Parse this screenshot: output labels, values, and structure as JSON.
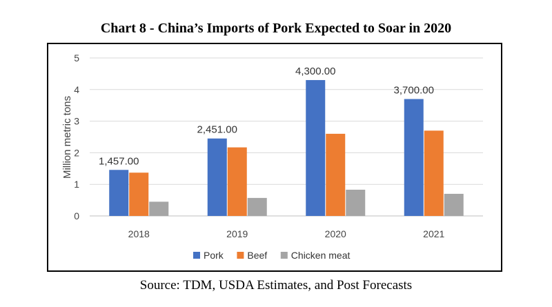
{
  "chart_data": {
    "type": "bar",
    "title": "Chart 8 - China’s Imports of Pork Expected to Soar in 2020",
    "source": "Source: TDM, USDA Estimates, and Post Forecasts",
    "ylabel": "Million metric tons",
    "xlabel": "",
    "ylim": [
      0,
      5
    ],
    "yticks": [
      0,
      1,
      2,
      3,
      4,
      5
    ],
    "grid": true,
    "legend_position": "bottom",
    "categories": [
      "2018",
      "2019",
      "2020",
      "2021"
    ],
    "series": [
      {
        "name": "Pork",
        "color": "#4472C4",
        "values": [
          1.457,
          2.451,
          4.3,
          3.7
        ]
      },
      {
        "name": "Beef",
        "color": "#ED7D31",
        "values": [
          1.37,
          2.17,
          2.6,
          2.7
        ]
      },
      {
        "name": "Chicken meat",
        "color": "#A5A5A5",
        "values": [
          0.45,
          0.57,
          0.83,
          0.7
        ]
      }
    ],
    "data_labels": {
      "series": "Pork",
      "labels": [
        "1,457.00",
        "2,451.00",
        "4,300.00",
        "3,700.00"
      ]
    }
  }
}
